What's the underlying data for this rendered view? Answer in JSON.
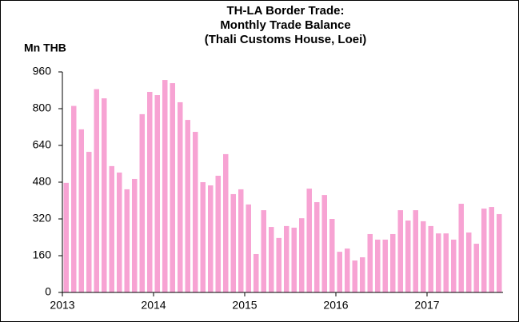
{
  "chart_data": {
    "type": "bar",
    "title": "TH-LA Border Trade:",
    "subtitle": "Monthly Trade Balance",
    "subtitle2": "(Thali Customs House, Loei)",
    "y_label": "Mn THB",
    "color": "#f7a3d3",
    "categories": [
      "2013",
      null,
      null,
      null,
      null,
      null,
      null,
      null,
      null,
      null,
      null,
      null,
      "2014",
      null,
      null,
      null,
      null,
      null,
      null,
      null,
      null,
      null,
      null,
      null,
      "2015",
      null,
      null,
      null,
      null,
      null,
      null,
      null,
      null,
      null,
      null,
      null,
      "2016",
      null,
      null,
      null,
      null,
      null,
      null,
      null,
      null,
      null,
      null,
      null,
      "2017",
      null,
      null,
      null,
      null,
      null,
      null,
      null,
      null,
      null
    ],
    "values": [
      477,
      812,
      710,
      612,
      885,
      845,
      550,
      522,
      449,
      494,
      776,
      873,
      859,
      925,
      911,
      828,
      751,
      699,
      480,
      466,
      508,
      602,
      428,
      449,
      383,
      167,
      358,
      285,
      237,
      289,
      282,
      323,
      452,
      393,
      424,
      320,
      177,
      191,
      139,
      153,
      254,
      230,
      230,
      254,
      358,
      313,
      358,
      310,
      289,
      257,
      257,
      230,
      386,
      261,
      212,
      365,
      372,
      341
    ],
    "ylim": [
      0,
      960
    ],
    "yticks": [
      0,
      160,
      320,
      480,
      640,
      800,
      960
    ]
  }
}
